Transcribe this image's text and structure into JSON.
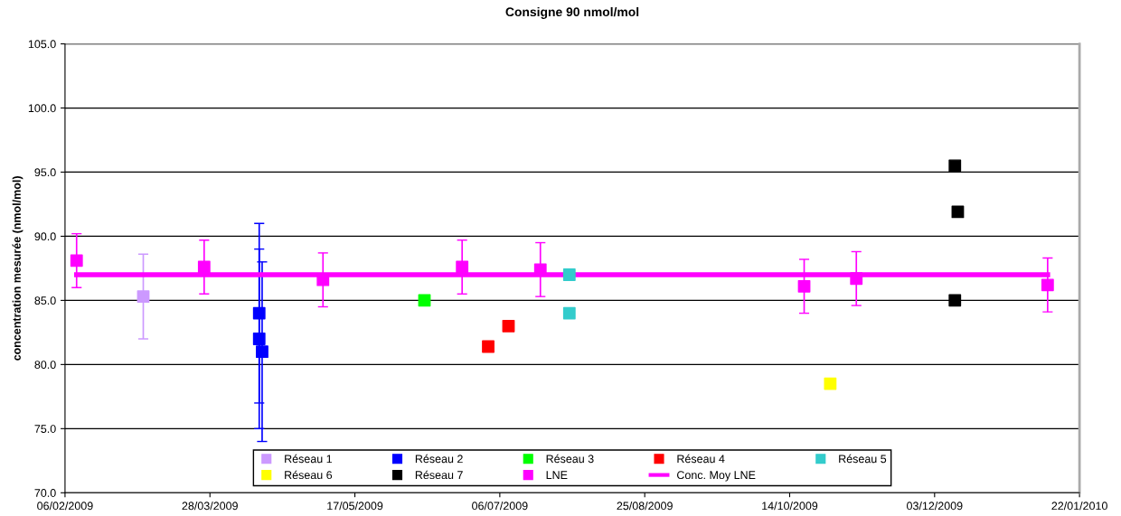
{
  "chart_data": {
    "type": "scatter",
    "title": "Consigne 90 nmol/mol",
    "ylabel": "concentration mesurée (nmol/mol)",
    "xlim": [
      "2009-02-06",
      "2010-01-22"
    ],
    "xticks": [
      {
        "value": "2009-02-06",
        "label": "06/02/2009"
      },
      {
        "value": "2009-03-28",
        "label": "28/03/2009"
      },
      {
        "value": "2009-05-17",
        "label": "17/05/2009"
      },
      {
        "value": "2009-07-06",
        "label": "06/07/2009"
      },
      {
        "value": "2009-08-25",
        "label": "25/08/2009"
      },
      {
        "value": "2009-10-14",
        "label": "14/10/2009"
      },
      {
        "value": "2009-12-03",
        "label": "03/12/2009"
      },
      {
        "value": "2010-01-22",
        "label": "22/01/2010"
      }
    ],
    "ylim": [
      70,
      105
    ],
    "yticks": [
      {
        "value": 70,
        "label": "70.0"
      },
      {
        "value": 75,
        "label": "75.0"
      },
      {
        "value": 80,
        "label": "80.0"
      },
      {
        "value": 85,
        "label": "85.0"
      },
      {
        "value": 90,
        "label": "90.0"
      },
      {
        "value": 95,
        "label": "95.0"
      },
      {
        "value": 100,
        "label": "100.0"
      },
      {
        "value": 105,
        "label": "105.0"
      }
    ],
    "grid": "y",
    "legend": "bottom",
    "marker": "square",
    "series": [
      {
        "name": "Réseau 1",
        "color": "#cc99ff",
        "x": [
          "2009-03-05"
        ],
        "values": [
          85.3
        ],
        "errors": [
          3.3
        ]
      },
      {
        "name": "Réseau 2",
        "color": "#0000ff",
        "x": [
          "2009-04-14",
          "2009-04-14",
          "2009-04-15"
        ],
        "values": [
          84.0,
          82.0,
          81.0
        ],
        "errors": [
          7,
          7,
          7
        ]
      },
      {
        "name": "Réseau 3",
        "color": "#00ff00",
        "x": [
          "2009-06-10"
        ],
        "values": [
          85.0
        ]
      },
      {
        "name": "Réseau 4",
        "color": "#ff0000",
        "x": [
          "2009-07-02",
          "2009-07-09"
        ],
        "values": [
          81.4,
          83.0
        ]
      },
      {
        "name": "Réseau 5",
        "color": "#33cccc",
        "x": [
          "2009-07-30",
          "2009-07-30"
        ],
        "values": [
          87.0,
          84.0
        ]
      },
      {
        "name": "Réseau 6",
        "color": "#ffff00",
        "x": [
          "2009-10-28"
        ],
        "values": [
          78.5
        ]
      },
      {
        "name": "Réseau 7",
        "color": "#000000",
        "x": [
          "2009-12-10",
          "2009-12-11",
          "2009-12-10"
        ],
        "values": [
          95.5,
          91.9,
          85.0
        ]
      },
      {
        "name": "LNE",
        "color": "#ff00ff",
        "x": [
          "2009-02-10",
          "2009-03-26",
          "2009-05-06",
          "2009-06-23",
          "2009-07-20",
          "2009-10-19",
          "2009-11-06",
          "2010-01-11"
        ],
        "values": [
          88.1,
          87.6,
          86.6,
          87.6,
          87.4,
          86.1,
          86.7,
          86.2
        ],
        "errors": [
          2.1,
          2.1,
          2.1,
          2.1,
          2.1,
          2.1,
          2.1,
          2.1
        ]
      },
      {
        "name": "Conc. Moy LNE",
        "type": "line",
        "marker": "none",
        "color": "#ff00ff",
        "x": [
          "2009-02-10",
          "2010-01-11"
        ],
        "values": [
          87.0,
          87.0
        ]
      }
    ]
  }
}
